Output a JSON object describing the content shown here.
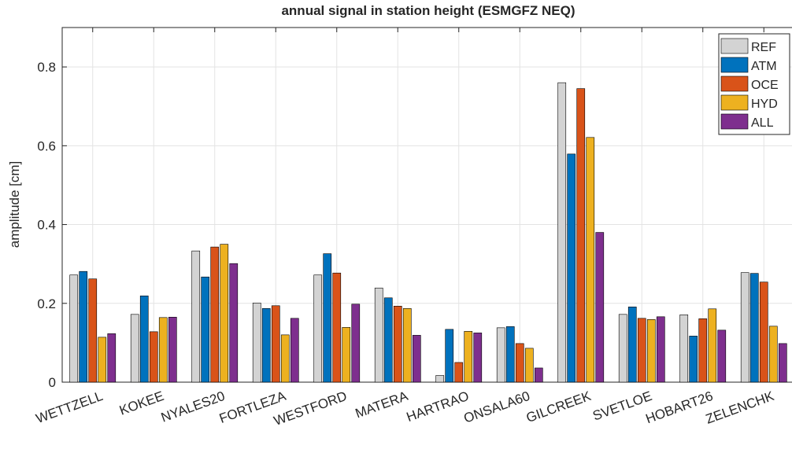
{
  "chart_data": {
    "type": "bar",
    "title": "annual signal in station height (ESMGFZ NEQ)",
    "y_label": "amplitude [cm]",
    "categories": [
      "WETTZELL",
      "KOKEE",
      "NYALES20",
      "FORTLEZA",
      "WESTFORD",
      "MATERA",
      "HARTRAO",
      "ONSALA60",
      "GILCREEK",
      "SVETLOE",
      "HOBART26",
      "ZELENCHK"
    ],
    "series": [
      {
        "name": "REF",
        "color": "#d3d3d3",
        "values": [
          0.272,
          0.172,
          0.333,
          0.201,
          0.272,
          0.239,
          0.017,
          0.138,
          0.76,
          0.172,
          0.171,
          0.278
        ]
      },
      {
        "name": "ATM",
        "color": "#0072bd",
        "values": [
          0.281,
          0.219,
          0.267,
          0.187,
          0.326,
          0.214,
          0.134,
          0.141,
          0.579,
          0.191,
          0.117,
          0.276
        ]
      },
      {
        "name": "OCE",
        "color": "#d95319",
        "values": [
          0.262,
          0.128,
          0.343,
          0.194,
          0.277,
          0.193,
          0.05,
          0.098,
          0.745,
          0.162,
          0.161,
          0.254
        ]
      },
      {
        "name": "HYD",
        "color": "#edb120",
        "values": [
          0.114,
          0.164,
          0.35,
          0.12,
          0.139,
          0.187,
          0.129,
          0.086,
          0.621,
          0.159,
          0.186,
          0.142
        ]
      },
      {
        "name": "ALL",
        "color": "#7e2f8e",
        "values": [
          0.123,
          0.165,
          0.301,
          0.162,
          0.198,
          0.119,
          0.125,
          0.036,
          0.38,
          0.166,
          0.132,
          0.098
        ]
      }
    ],
    "ylim": [
      0,
      0.9
    ],
    "yticks": [
      0,
      0.2,
      0.4,
      0.6,
      0.8
    ],
    "grid": true,
    "legend": "northeast"
  }
}
